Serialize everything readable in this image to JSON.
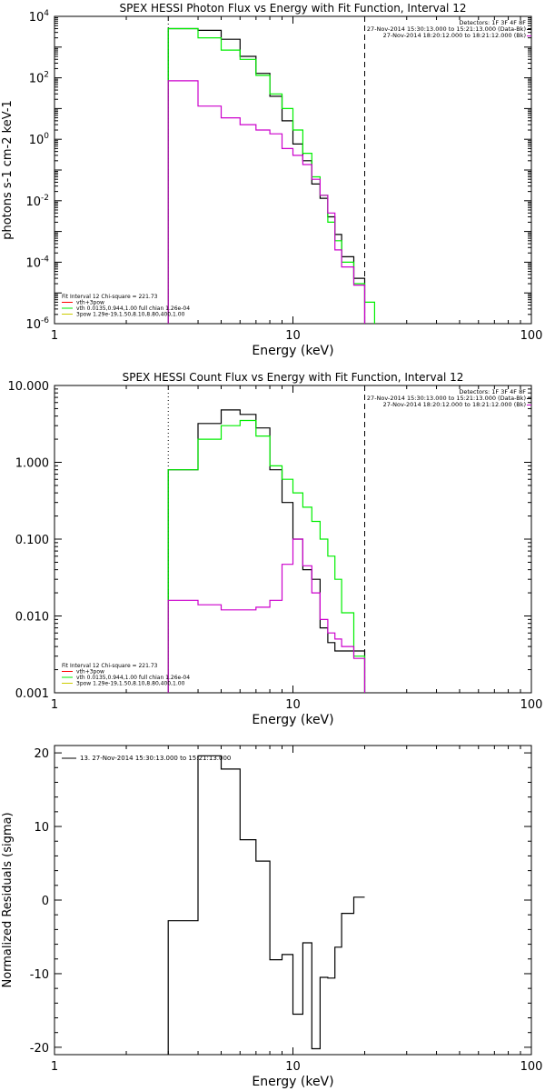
{
  "colors": {
    "data": "#000000",
    "model": "#00ee00",
    "bkg": "#cc00cc",
    "total": "#ff0000",
    "yellow": "#cccc00"
  },
  "chart_data": [
    {
      "type": "line",
      "title": "SPEX HESSI Photon Flux vs Energy with Fit Function, Interval 12",
      "xlabel": "Energy (keV)",
      "ylabel": "photons s-1 cm-2 keV-1",
      "xscale": "log",
      "yscale": "log",
      "xlim": [
        1,
        100
      ],
      "ylim": [
        1e-06,
        10000.0
      ],
      "xticks": [
        {
          "v": 1,
          "label": "1"
        },
        {
          "v": 10,
          "label": "10"
        },
        {
          "v": 100,
          "label": "100"
        }
      ],
      "yticks": [
        {
          "v": 10000.0,
          "m": "10",
          "e": "4"
        },
        {
          "v": 100.0,
          "m": "10",
          "e": "2"
        },
        {
          "v": 1,
          "m": "10",
          "e": "0"
        },
        {
          "v": 0.01,
          "m": "10",
          "e": "-2"
        },
        {
          "v": 0.0001,
          "m": "10",
          "e": "-4"
        },
        {
          "v": 1e-06,
          "m": "10",
          "e": "-6"
        }
      ],
      "vlines": [
        {
          "x": 3,
          "style": "dotted"
        },
        {
          "x": 20,
          "style": "dashed"
        }
      ],
      "header_lines": [
        "Detectors: 1F 3F 4F 8F",
        "27-Nov-2014 15:30:13.000 to 15:21:13.000 (Data-Bk)",
        "27-Nov-2014 18:20:12.000 to 18:21:12.000 (Bk)"
      ],
      "fit_lines": [
        {
          "text": "Fit Interval 12   Chi-square = 221.73",
          "color": ""
        },
        {
          "text": "vth+3pow",
          "color": "#ff0000"
        },
        {
          "text": "vth 0.0135,0.944,1.00  full chian 1.26e-04",
          "color": "#00ee00"
        },
        {
          "text": "3pow 1.29e-19,1.50,8.10,8.80,400,1.00",
          "color": "#cccc00"
        }
      ],
      "series": [
        {
          "color": "#000000",
          "edges": [
            3,
            4,
            5,
            6,
            7,
            8,
            9,
            10,
            11,
            12,
            13,
            14,
            15,
            16,
            18,
            20
          ],
          "values": [
            4000,
            3500,
            1800,
            500,
            140,
            25,
            4,
            0.7,
            0.2,
            0.035,
            0.012,
            0.003,
            0.0008,
            0.00015,
            3e-05
          ]
        },
        {
          "color": "#00ee00",
          "edges": [
            3,
            4,
            5,
            6,
            7,
            8,
            9,
            10,
            11,
            12,
            13,
            14,
            15,
            16,
            18,
            20,
            22
          ],
          "values": [
            4000,
            2000,
            800,
            400,
            120,
            30,
            10,
            2,
            0.35,
            0.06,
            0.015,
            0.002,
            0.0005,
            0.0001,
            2e-05,
            5e-06
          ]
        },
        {
          "color": "#cc00cc",
          "edges": [
            3,
            4,
            5,
            6,
            7,
            8,
            9,
            10,
            11,
            12,
            13,
            14,
            15,
            16,
            18,
            20
          ],
          "values": [
            80,
            12,
            5,
            3,
            2,
            1.5,
            0.5,
            0.3,
            0.15,
            0.05,
            0.015,
            0.004,
            0.00025,
            7e-05,
            1.8e-05
          ]
        }
      ]
    },
    {
      "type": "line",
      "title": "SPEX HESSI Count Flux vs Energy with Fit Function, Interval 12",
      "xlabel": "Energy (keV)",
      "ylabel": "",
      "xscale": "log",
      "yscale": "log",
      "xlim": [
        1,
        100
      ],
      "ylim": [
        0.001,
        10
      ],
      "xticks": [
        {
          "v": 1,
          "label": "1"
        },
        {
          "v": 10,
          "label": "10"
        },
        {
          "v": 100,
          "label": "100"
        }
      ],
      "yticks": [
        {
          "v": 10,
          "label": "10.000"
        },
        {
          "v": 1,
          "label": "1.000"
        },
        {
          "v": 0.1,
          "label": "0.100"
        },
        {
          "v": 0.01,
          "label": "0.010"
        },
        {
          "v": 0.001,
          "label": "0.001"
        }
      ],
      "vlines": [
        {
          "x": 3,
          "style": "dotted"
        },
        {
          "x": 20,
          "style": "dashed"
        }
      ],
      "header_lines": [
        "Detectors: 1F 3F 4F 8F",
        "27-Nov-2014 15:30:13.000 to 15:21:13.000 (Data-Bk)",
        "27-Nov-2014 18:20:12.000 to 18:21:12.000 (Bk)"
      ],
      "fit_lines": [
        {
          "text": "Fit Interval 12   Chi-square = 221.73",
          "color": ""
        },
        {
          "text": "vth+3pow",
          "color": "#ff0000"
        },
        {
          "text": "vth 0.0135,0.944,1.00  full chian 1.26e-04",
          "color": "#00ee00"
        },
        {
          "text": "3pow 1.29e-19,1.50,8.10,8.80,400,1.00",
          "color": "#cccc00"
        }
      ],
      "series": [
        {
          "color": "#000000",
          "edges": [
            3,
            4,
            5,
            6,
            7,
            8,
            9,
            10,
            11,
            12,
            13,
            14,
            15,
            16,
            18,
            20
          ],
          "values": [
            0.8,
            3.2,
            4.8,
            4.2,
            2.8,
            0.8,
            0.3,
            0.1,
            0.04,
            0.03,
            0.007,
            0.0045,
            0.0035,
            0.0035,
            0.0035
          ]
        },
        {
          "color": "#00ee00",
          "edges": [
            3,
            4,
            5,
            6,
            7,
            8,
            9,
            10,
            11,
            12,
            13,
            14,
            15,
            16,
            18,
            20
          ],
          "values": [
            0.8,
            2.0,
            3.0,
            3.5,
            2.2,
            0.9,
            0.6,
            0.4,
            0.26,
            0.17,
            0.1,
            0.06,
            0.03,
            0.011,
            0.003
          ]
        },
        {
          "color": "#cc00cc",
          "edges": [
            3,
            4,
            5,
            6,
            7,
            8,
            9,
            10,
            11,
            12,
            13,
            14,
            15,
            16,
            18,
            20
          ],
          "values": [
            0.016,
            0.014,
            0.012,
            0.012,
            0.013,
            0.016,
            0.047,
            0.1,
            0.045,
            0.02,
            0.009,
            0.006,
            0.005,
            0.004,
            0.0028
          ]
        }
      ]
    },
    {
      "type": "line",
      "title": "",
      "xlabel": "Energy (keV)",
      "ylabel": "Normalized Residuals (sigma)",
      "xscale": "log",
      "yscale": "linear",
      "xlim": [
        1,
        100
      ],
      "ylim": [
        -21,
        21
      ],
      "xticks": [
        {
          "v": 1,
          "label": "1"
        },
        {
          "v": 10,
          "label": "10"
        },
        {
          "v": 100,
          "label": "100"
        }
      ],
      "yticks": [
        {
          "v": 20,
          "label": "20"
        },
        {
          "v": 10,
          "label": "10"
        },
        {
          "v": 0,
          "label": "0"
        },
        {
          "v": -10,
          "label": "-10"
        },
        {
          "v": -20,
          "label": "-20"
        }
      ],
      "legend": "13. 27-Nov-2014 15:30:13.000 to 15:21:13.000",
      "series": [
        {
          "color": "#000000",
          "edges": [
            3,
            4,
            5,
            6,
            7,
            8,
            9,
            10,
            11,
            12,
            13,
            14,
            15,
            16,
            18,
            20
          ],
          "values": [
            -2.8,
            19.6,
            17.8,
            8.2,
            5.3,
            -8.1,
            -7.4,
            -15.5,
            -5.8,
            -20.2,
            -10.5,
            -10.6,
            -6.4,
            -1.8,
            0.4
          ]
        }
      ]
    }
  ]
}
